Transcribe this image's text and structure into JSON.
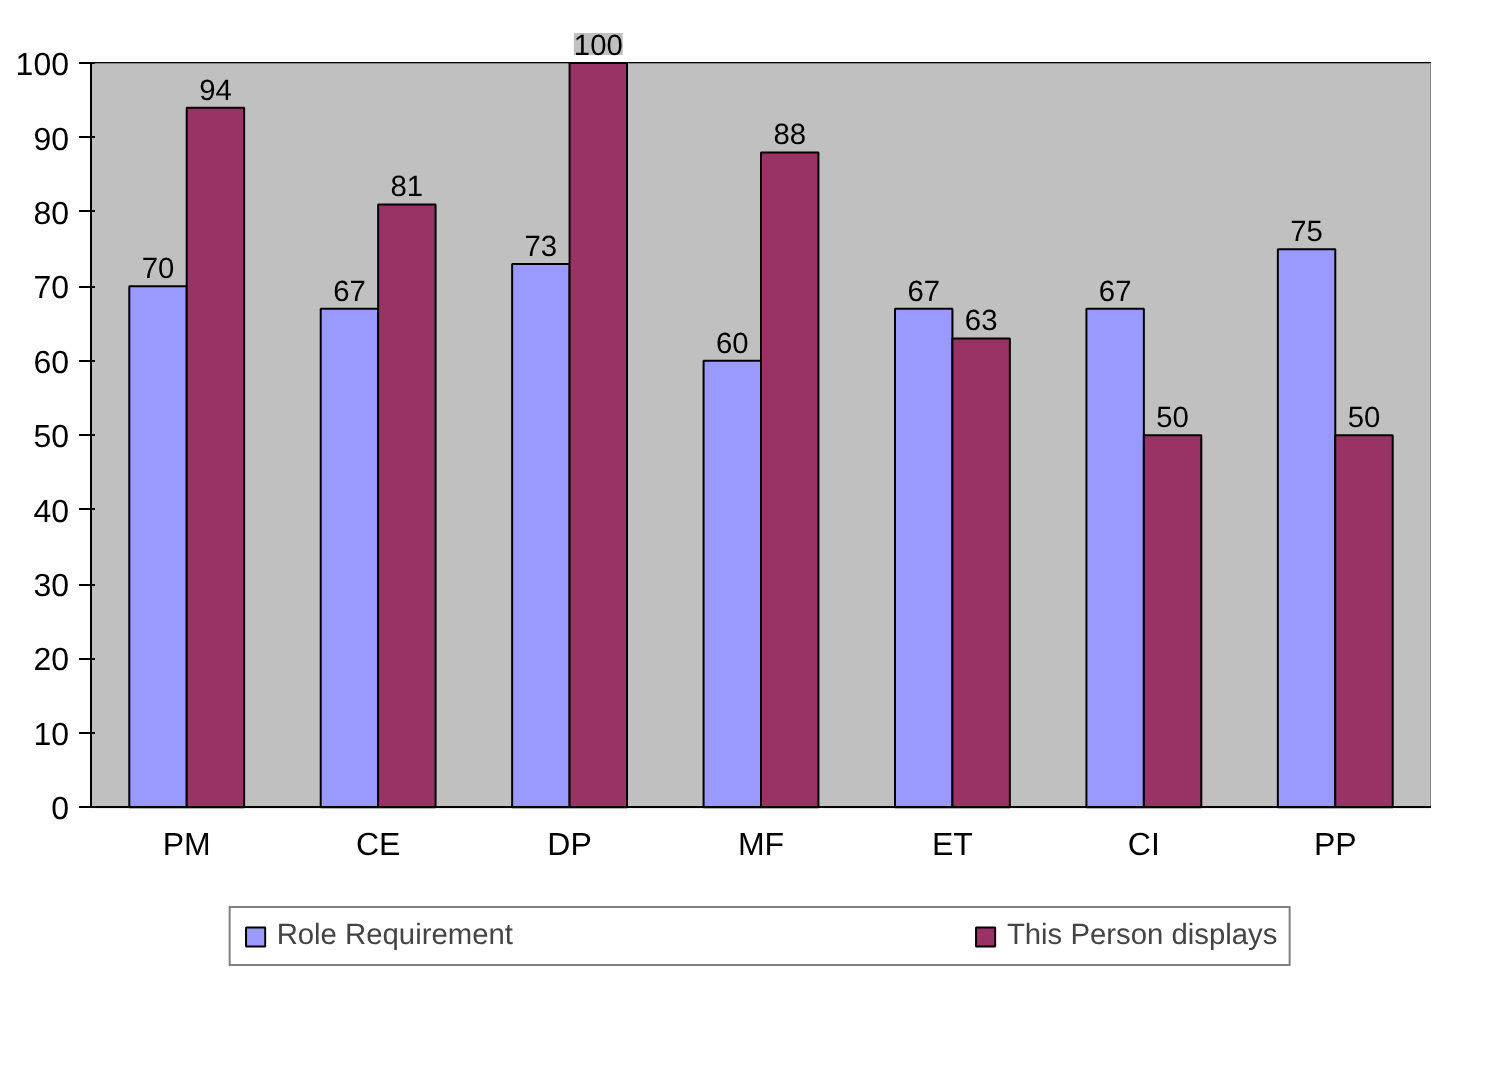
{
  "chart_data": {
    "type": "bar",
    "categories": [
      "PM",
      "CE",
      "DP",
      "MF",
      "ET",
      "CI",
      "PP"
    ],
    "series": [
      {
        "name": "Role Requirement",
        "color": "#9999ff",
        "values": [
          70,
          67,
          73,
          60,
          67,
          67,
          75
        ]
      },
      {
        "name": "This Person displays",
        "color": "#993366",
        "values": [
          94,
          81,
          100,
          88,
          63,
          50,
          50
        ]
      }
    ],
    "ylim": [
      0,
      100
    ],
    "yticks": [
      0,
      10,
      20,
      30,
      40,
      50,
      60,
      70,
      80,
      90,
      100
    ],
    "grid": "y",
    "legend": "bottom",
    "data_labels": true
  }
}
